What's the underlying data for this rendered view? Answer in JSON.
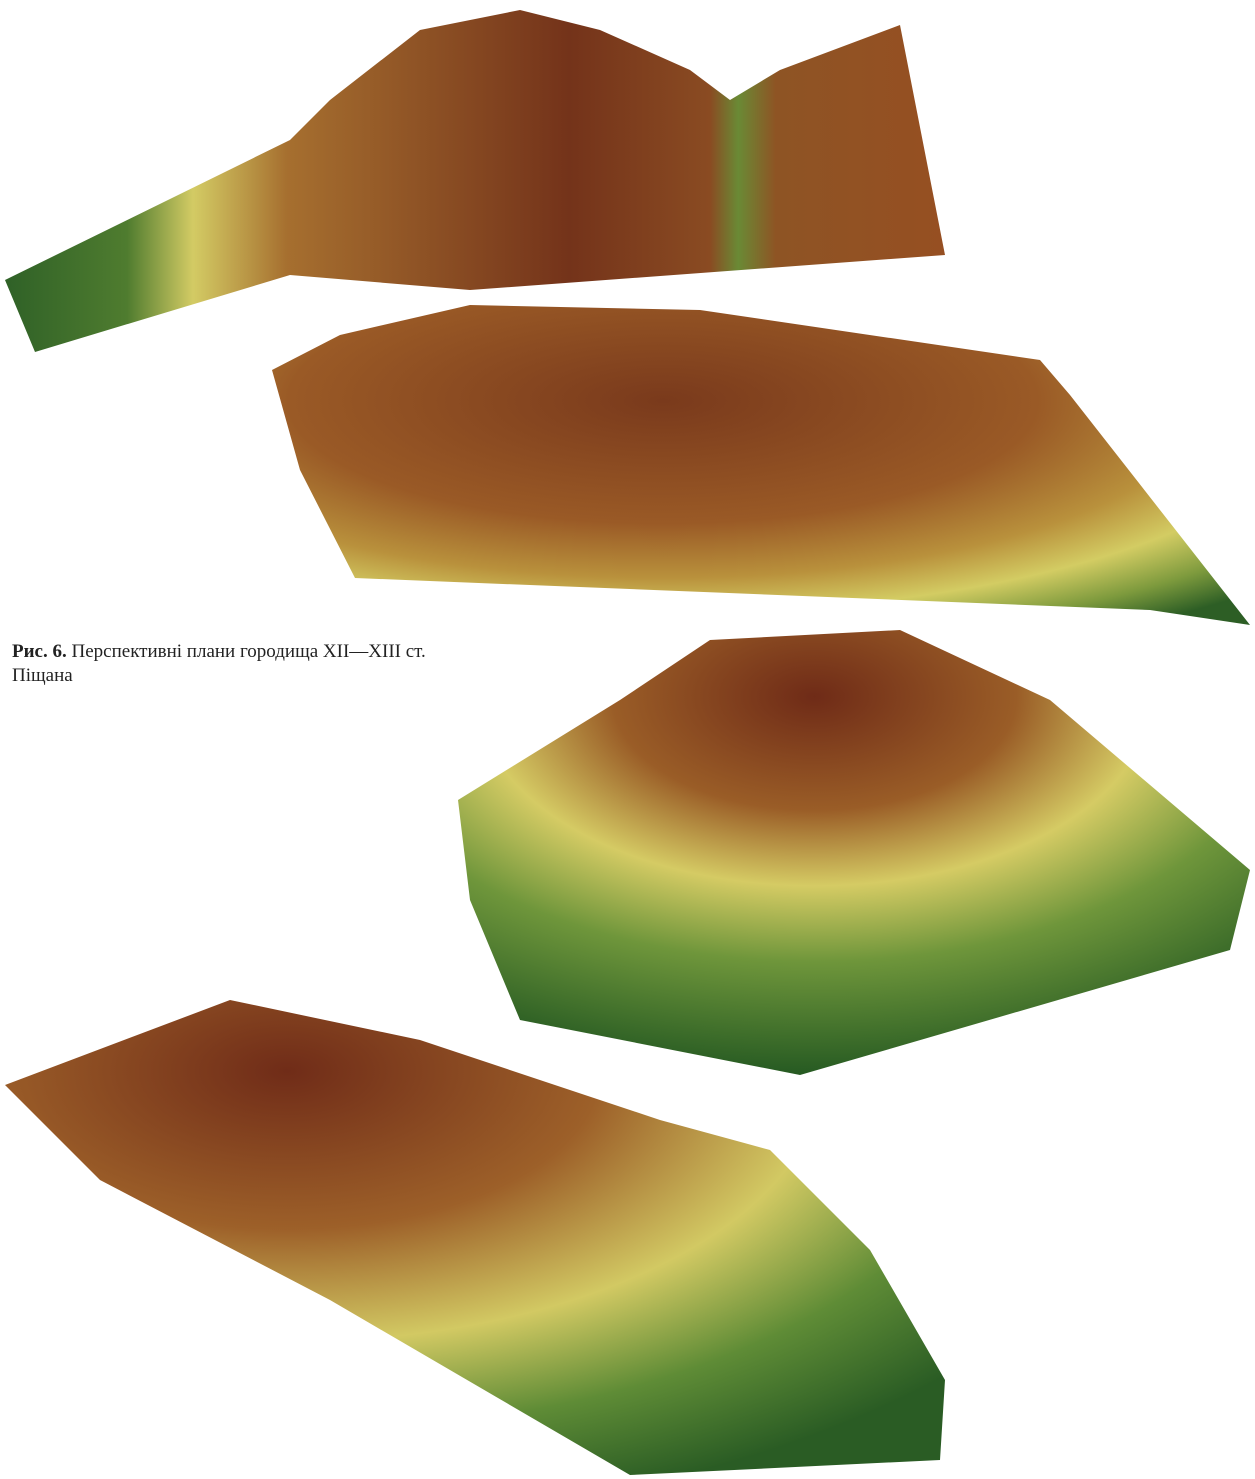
{
  "caption": {
    "label": "Рис. 6.",
    "text": "Перспективні плани городища XII—XIII ст. Піщана"
  }
}
